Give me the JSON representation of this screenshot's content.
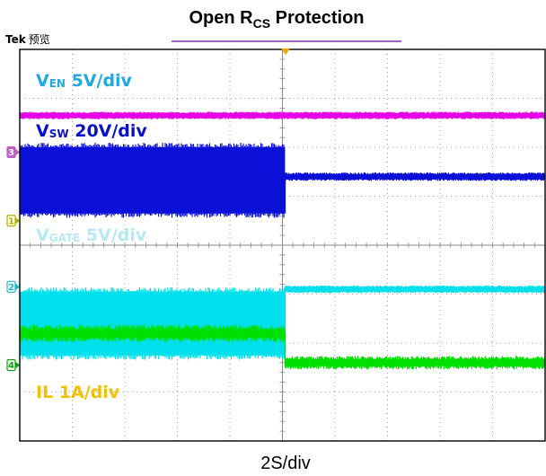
{
  "header": {
    "title_main": "Open R",
    "title_sub": "CS",
    "title_rest": " Protection",
    "brand": "Tek",
    "mode": "预览"
  },
  "footer": {
    "timebase": "2S/div"
  },
  "colors": {
    "grid": "#8a8a8a",
    "frame": "#000000",
    "trigger_marker": "#f0a400",
    "marker_line": "#8030a0"
  },
  "chart_data": {
    "type": "line",
    "title": "Open RCS Protection",
    "xlabel": "2S/div",
    "grid": true,
    "divisions": {
      "x": 10,
      "y": 8
    },
    "trigger_division": 5,
    "traces": [
      {
        "key": "ven",
        "label_main": "V",
        "label_sub": "EN",
        "label_rest": " 5V/div",
        "label_color": "#22a8e0",
        "color": "#e600e6",
        "channel": null,
        "segments": [
          {
            "x": [
              0,
              10
            ],
            "level": 1.35,
            "noise": 0.04
          }
        ]
      },
      {
        "key": "vsw",
        "label_main": "V",
        "label_sub": "SW",
        "label_rest": " 20V/div",
        "label_color": "#0a10c8",
        "color": "#0a10d8",
        "channel": "3",
        "channel_level": 2.1,
        "segments": [
          {
            "x": [
              0,
              5.05
            ],
            "band": [
              2.0,
              3.35
            ],
            "noise": 0.0
          },
          {
            "x": [
              5.05,
              10
            ],
            "level": 2.6,
            "noise": 0.05
          }
        ]
      },
      {
        "key": "vgate",
        "label_main": "V",
        "label_sub": "GATE",
        "label_rest": " 5V/div",
        "label_color": "#b8e8f4",
        "color": "#00e0ec",
        "channel": "2",
        "channel_level": 4.85,
        "segments": [
          {
            "x": [
              0,
              5.05
            ],
            "band": [
              4.95,
              6.25
            ],
            "noise": 0.0
          },
          {
            "x": [
              5.05,
              10
            ],
            "level": 4.9,
            "noise": 0.04
          }
        ]
      },
      {
        "key": "il",
        "label_main": "IL",
        "label_sub": "",
        "label_rest": " 1A/div",
        "label_color": "#f0c000",
        "color": "#00e000",
        "channel": "4",
        "channel_level": 6.45,
        "segments": [
          {
            "x": [
              0,
              5.05
            ],
            "level": 5.8,
            "noise": 0.14
          },
          {
            "x": [
              5.05,
              10
            ],
            "level": 6.4,
            "noise": 0.1
          }
        ]
      }
    ],
    "channel_1_level": 3.5
  }
}
